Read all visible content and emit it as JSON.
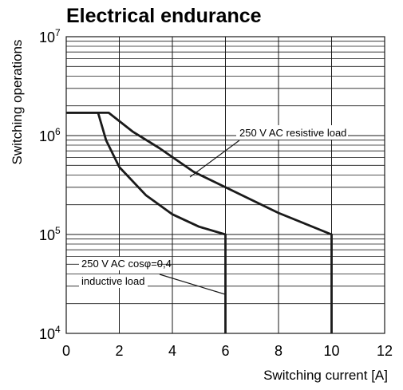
{
  "chart_data": {
    "type": "line",
    "title": "Electrical endurance",
    "xlabel": "Switching current [A]",
    "ylabel": "Switching operations",
    "x_scale": "linear",
    "y_scale": "log",
    "xlim": [
      0,
      12
    ],
    "ylim": [
      10000,
      10000000
    ],
    "x_ticks": [
      "0",
      "2",
      "4",
      "6",
      "8",
      "10",
      "12"
    ],
    "y_ticks": [
      {
        "base": "10",
        "exp": "4"
      },
      {
        "base": "10",
        "exp": "5"
      },
      {
        "base": "10",
        "exp": "6"
      },
      {
        "base": "10",
        "exp": "7"
      }
    ],
    "grid": true,
    "line_color": "#1a1a1a",
    "series": [
      {
        "name": "250 V AC resistive load",
        "points": [
          [
            0,
            1700000
          ],
          [
            1.6,
            1700000
          ],
          [
            2.5,
            1100000
          ],
          [
            3.5,
            750000
          ],
          [
            4.8,
            430000
          ],
          [
            6,
            300000
          ],
          [
            8,
            165000
          ],
          [
            10,
            100000
          ],
          [
            10,
            10000
          ]
        ]
      },
      {
        "name": "250 V AC cosφ=0,4",
        "name_line2": "inductive load",
        "points": [
          [
            0,
            1700000
          ],
          [
            1.2,
            1700000
          ],
          [
            1.5,
            900000
          ],
          [
            2,
            480000
          ],
          [
            3,
            250000
          ],
          [
            4,
            160000
          ],
          [
            5,
            120000
          ],
          [
            6,
            100000
          ],
          [
            6,
            10000
          ]
        ]
      }
    ]
  }
}
